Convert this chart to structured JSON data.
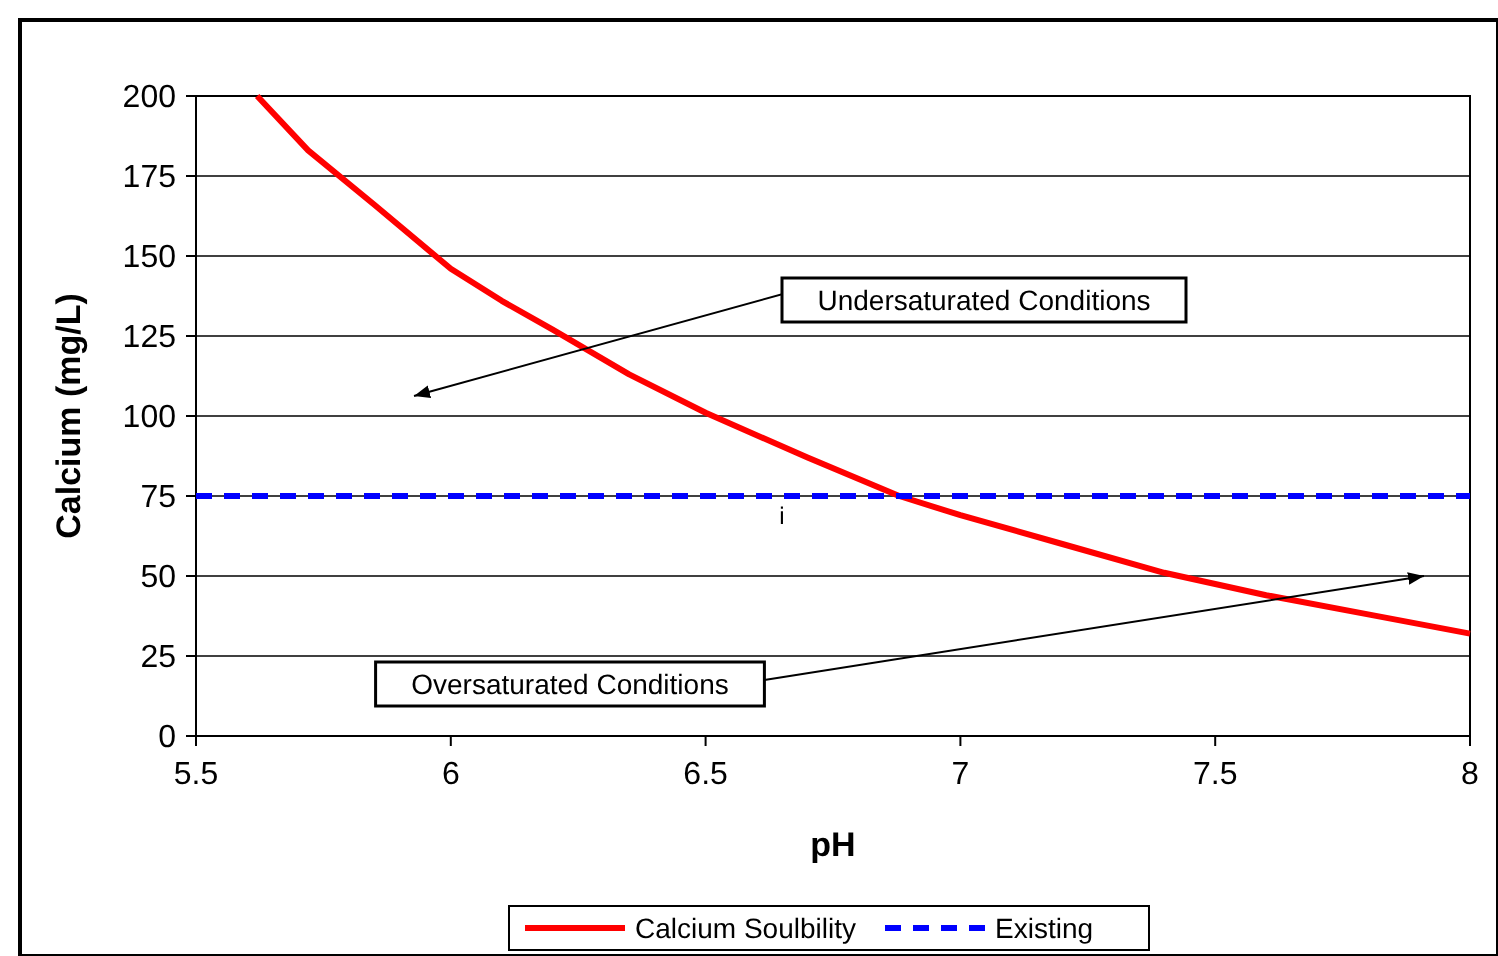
{
  "chart_data": {
    "type": "line",
    "xlabel": "pH",
    "ylabel": "Calcium (mg/L)",
    "xlim": [
      5.5,
      8
    ],
    "xticks": [
      5.5,
      6,
      6.5,
      7,
      7.5,
      8
    ],
    "ylim": [
      0,
      200
    ],
    "yticks": [
      0,
      25,
      50,
      75,
      100,
      125,
      150,
      175,
      200
    ],
    "grid": "y",
    "legend": "bottom",
    "series": [
      {
        "name": "Calcium Soulbility",
        "color": "#ff0000",
        "line_style": "solid",
        "x": [
          5.62,
          5.72,
          5.85,
          6.0,
          6.1,
          6.2,
          6.35,
          6.5,
          6.7,
          6.88,
          7.0,
          7.2,
          7.4,
          7.6,
          7.8,
          8.0
        ],
        "values": [
          200,
          183,
          166,
          146,
          136,
          127,
          113,
          101,
          87,
          75,
          69,
          60,
          51,
          44,
          38,
          32
        ]
      },
      {
        "name": "Existing",
        "color": "#0000ff",
        "line_style": "dashed",
        "x": [
          5.5,
          8
        ],
        "values": [
          75,
          75
        ]
      }
    ],
    "annotations": [
      "Undersaturated Conditions",
      "Oversaturated Conditions",
      "i"
    ]
  }
}
